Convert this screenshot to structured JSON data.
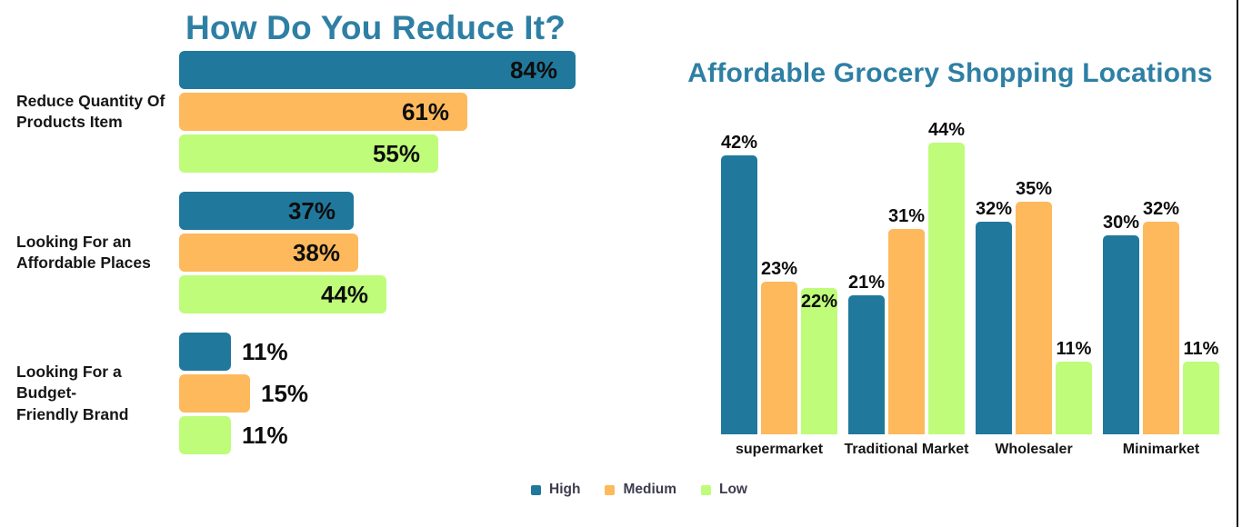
{
  "colors": {
    "teal": "#20799C",
    "orange": "#FDB95C",
    "green": "#BEFC7A",
    "title_text": "#2E7FA4",
    "value_text": "#0D0D0D",
    "category_text": "#161616",
    "legend_text": "#3D3D4F",
    "frame_border": "#0A0A0A"
  },
  "left_chart": {
    "title": "How Do You Reduce It?"
  },
  "right_chart": {
    "title": "Affordable Grocery Shopping Locations"
  },
  "legend": {
    "items": [
      {
        "label": "High",
        "color_key": "teal"
      },
      {
        "label": "Medium",
        "color_key": "orange"
      },
      {
        "label": "Low",
        "color_key": "green"
      }
    ]
  },
  "chart_data": [
    {
      "type": "bar",
      "orientation": "horizontal",
      "title": "How Do You Reduce It?",
      "categories": [
        {
          "label": "Reduce Quantity Of Products Item",
          "lines": [
            "Reduce Quantity Of",
            "Products Item"
          ]
        },
        {
          "label": "Looking For an Affordable Places",
          "lines": [
            "Looking For an",
            "Affordable Places"
          ]
        },
        {
          "label": "Looking For a Budget-Friendly Brand",
          "lines": [
            "Looking For a Budget-",
            "Friendly Brand"
          ]
        }
      ],
      "series": [
        {
          "name": "High",
          "color_key": "teal",
          "values": [
            84,
            37,
            11
          ]
        },
        {
          "name": "Medium",
          "color_key": "orange",
          "values": [
            61,
            38,
            15
          ]
        },
        {
          "name": "Low",
          "color_key": "green",
          "values": [
            55,
            44,
            11
          ]
        }
      ],
      "value_suffix": "%",
      "xlim": [
        0,
        100
      ],
      "grid": false,
      "value_labels": "end-of-bar"
    },
    {
      "type": "bar",
      "orientation": "vertical",
      "title": "Affordable Grocery Shopping Locations",
      "categories": [
        {
          "label": "supermarket"
        },
        {
          "label": "Traditional Market"
        },
        {
          "label": "Wholesaler"
        },
        {
          "label": "Minimarket"
        }
      ],
      "series": [
        {
          "name": "High",
          "color_key": "teal",
          "values": [
            42,
            21,
            32,
            30
          ]
        },
        {
          "name": "Medium",
          "color_key": "orange",
          "values": [
            23,
            31,
            35,
            32
          ]
        },
        {
          "name": "Low",
          "color_key": "green",
          "values": [
            22,
            44,
            11,
            11
          ]
        }
      ],
      "value_suffix": "%",
      "ylim": [
        0,
        100
      ],
      "grid": false,
      "value_labels": "above-bar",
      "label_inside": [
        {
          "category": 0,
          "series": 2
        }
      ],
      "legend_position": "bottom"
    }
  ]
}
